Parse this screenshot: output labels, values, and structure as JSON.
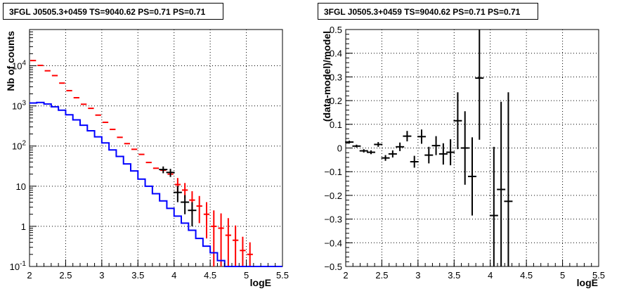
{
  "chart_data": [
    {
      "type": "step-histogram-with-errorbars",
      "title": "3FGL J0505.3+0459 TS=9040.62 PS=0.71 PS=0.71",
      "xlabel": "logE",
      "ylabel": "Nb of counts",
      "xlim": [
        2,
        5.5
      ],
      "ylim": [
        0.1,
        80000
      ],
      "yscale": "log",
      "grid": true,
      "x_ticks": [
        "2",
        "2.5",
        "3",
        "3.5",
        "4",
        "4.5",
        "5",
        "5.5"
      ],
      "y_ticks": [
        {
          "value": 0.1,
          "label": "10",
          "exp": "-1"
        },
        {
          "value": 1,
          "label": "1",
          "exp": ""
        },
        {
          "value": 10,
          "label": "10",
          "exp": ""
        },
        {
          "value": 100,
          "label": "10",
          "exp": "2"
        },
        {
          "value": 1000,
          "label": "10",
          "exp": "3"
        },
        {
          "value": 10000,
          "label": "10",
          "exp": "4"
        }
      ],
      "bin_edges": [
        2.0,
        2.1,
        2.2,
        2.3,
        2.4,
        2.5,
        2.6,
        2.7,
        2.8,
        2.9,
        3.0,
        3.1,
        3.2,
        3.3,
        3.4,
        3.5,
        3.6,
        3.7,
        3.8,
        3.9,
        4.0,
        4.1,
        4.2,
        4.3,
        4.4,
        4.5,
        4.6,
        4.7,
        4.8,
        4.9,
        5.0,
        5.1,
        5.2,
        5.3,
        5.4,
        5.5
      ],
      "series": [
        {
          "name": "",
          "color": "#0000ff",
          "style": "step",
          "values": [
            1180,
            1220,
            1120,
            950,
            780,
            600,
            450,
            330,
            240,
            170,
            120,
            80,
            55,
            36,
            24,
            15,
            10,
            6.5,
            4.3,
            2.8,
            1.8,
            1.2,
            0.8,
            0.5,
            0.32,
            0.22,
            0.14,
            0.1,
            0.1,
            0.1,
            0.1,
            0.1,
            0.1,
            0.1,
            0.1
          ]
        },
        {
          "name": "",
          "color": "#ff0000",
          "style": "errorbar",
          "values": [
            13500,
            10200,
            7500,
            5700,
            3700,
            2400,
            1600,
            1100,
            870,
            590,
            390,
            260,
            165,
            115,
            83,
            62,
            39,
            28,
            25,
            20,
            11,
            8,
            4.5,
            3.2,
            2.0,
            1.0,
            0.9,
            0.6,
            0.45,
            0.25,
            0.2,
            0,
            0,
            0,
            0
          ],
          "err_low": [
            0,
            0,
            0,
            0,
            0,
            0,
            0,
            0,
            0,
            0,
            0,
            0,
            0,
            0,
            0,
            0,
            0,
            0,
            0,
            0,
            4,
            3,
            2.5,
            2,
            1.5,
            1,
            1,
            0.6,
            0.45,
            0.25,
            0.2,
            0,
            0,
            0,
            0
          ],
          "err_high": [
            0,
            0,
            0,
            0,
            0,
            0,
            0,
            0,
            0,
            0,
            0,
            0,
            0,
            0,
            0,
            0,
            0,
            0,
            0,
            0,
            5,
            4,
            3,
            2.5,
            2,
            1.5,
            1.2,
            1,
            0.6,
            0.3,
            0.2,
            0,
            0,
            0,
            0
          ]
        },
        {
          "name": "",
          "color": "#000000",
          "style": "errorbar",
          "x": [
            3.85,
            3.95,
            4.05,
            4.15,
            4.25
          ],
          "values": [
            26,
            22,
            7,
            4,
            2.5
          ],
          "err_low": [
            5,
            5,
            3,
            2,
            1.5
          ],
          "err_high": [
            5,
            5,
            3,
            2,
            1.5
          ]
        }
      ]
    },
    {
      "type": "scatter-with-errorbars",
      "title": "3FGL J0505.3+0459 TS=9040.62 PS=0.71 PS=0.71",
      "xlabel": "logE",
      "ylabel": "(data-model)/model",
      "xlim": [
        2,
        5.5
      ],
      "ylim": [
        -0.5,
        0.5
      ],
      "grid": true,
      "x_ticks": [
        "2",
        "2.5",
        "3",
        "3.5",
        "4",
        "4.5",
        "5",
        "5.5"
      ],
      "y_ticks": [
        "0.5",
        "0.4",
        "0.3",
        "0.2",
        "0.1",
        "0",
        "−0.1",
        "−0.2",
        "−0.3",
        "−0.4",
        "−0.5"
      ],
      "series": [
        {
          "name": "",
          "color": "#000000",
          "x": [
            2.05,
            2.15,
            2.25,
            2.35,
            2.45,
            2.55,
            2.65,
            2.75,
            2.85,
            2.95,
            3.05,
            3.15,
            3.25,
            3.35,
            3.45,
            3.55,
            3.65,
            3.75,
            3.85,
            4.05,
            4.15,
            4.25
          ],
          "y": [
            0.025,
            0.008,
            -0.012,
            -0.018,
            0.015,
            -0.042,
            -0.025,
            0.005,
            0.05,
            -0.058,
            0.048,
            -0.03,
            0.01,
            -0.025,
            -0.018,
            0.115,
            0.0,
            -0.12,
            0.295,
            -0.285,
            -0.175,
            -0.225
          ],
          "err": [
            0.006,
            0.006,
            0.007,
            0.008,
            0.01,
            0.012,
            0.015,
            0.018,
            0.022,
            0.025,
            0.03,
            0.035,
            0.04,
            0.045,
            0.055,
            0.12,
            0.155,
            0.165,
            0.26,
            0.29,
            0.37,
            0.46
          ]
        }
      ]
    }
  ]
}
